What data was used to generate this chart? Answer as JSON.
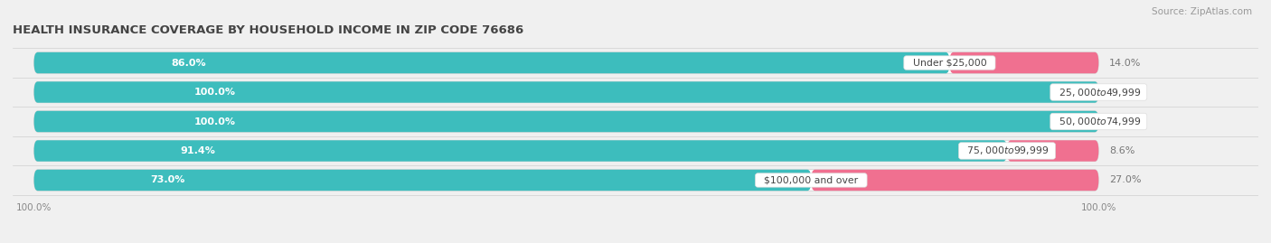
{
  "title": "HEALTH INSURANCE COVERAGE BY HOUSEHOLD INCOME IN ZIP CODE 76686",
  "source": "Source: ZipAtlas.com",
  "categories": [
    "Under $25,000",
    "$25,000 to $49,999",
    "$50,000 to $74,999",
    "$75,000 to $99,999",
    "$100,000 and over"
  ],
  "with_coverage": [
    86.0,
    100.0,
    100.0,
    91.4,
    73.0
  ],
  "without_coverage": [
    14.0,
    0.0,
    0.0,
    8.6,
    27.0
  ],
  "color_with": "#3DBDBD",
  "color_without": "#F07090",
  "bar_height": 0.72,
  "background_color": "#f0f0f0",
  "bar_background": "#e8e8e8",
  "title_fontsize": 9.5,
  "label_fontsize": 8.0,
  "category_fontsize": 7.8,
  "tick_fontsize": 7.5,
  "source_fontsize": 7.5
}
